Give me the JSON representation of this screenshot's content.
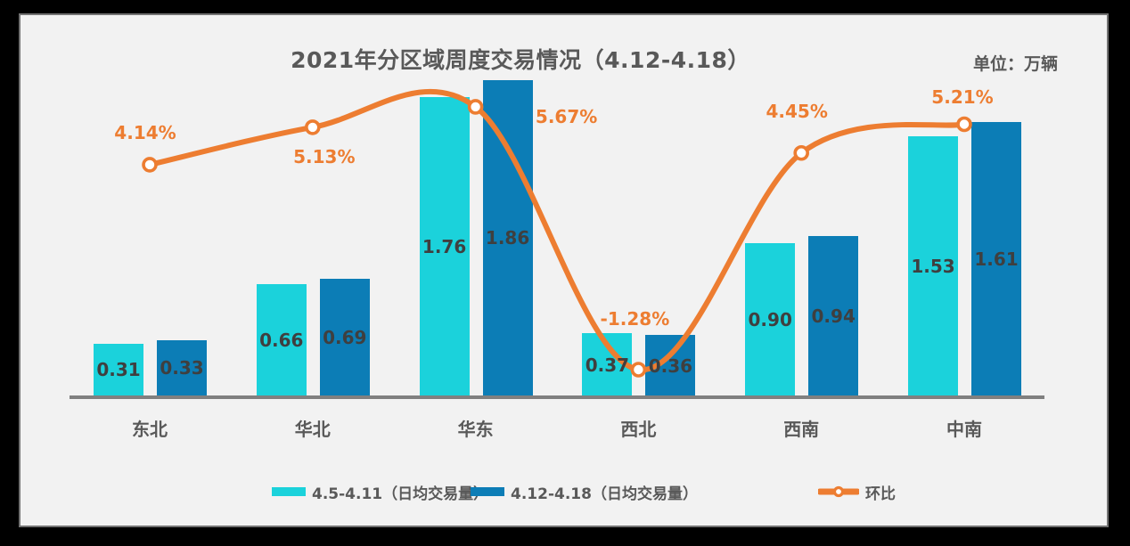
{
  "title": "2021年分区域周度交易情况（4.12-4.18）",
  "unit_label": "单位：万辆",
  "legend": {
    "items": [
      {
        "label": "4.5-4.11（日均交易量）",
        "color": "#1BD2DB",
        "type": "bar"
      },
      {
        "label": "4.12-4.18（日均交易量）",
        "color": "#0C7DB6",
        "type": "bar"
      },
      {
        "label": "环比",
        "color": "#ED7D31",
        "type": "line"
      }
    ]
  },
  "colors": {
    "series1": "#1BD2DB",
    "series2": "#0C7DB6",
    "line": "#ED7D31",
    "text_gray": "#595959",
    "value_text": "#3f3f3f",
    "axis": "#808080",
    "panel_bg": "#f2f2f2"
  },
  "chart_data": {
    "type": "bar+line",
    "title": "2021年分区域周度交易情况（4.12-4.18）",
    "unit": "万辆",
    "categories": [
      "东北",
      "华北",
      "华东",
      "西北",
      "西南",
      "中南"
    ],
    "series": [
      {
        "name": "4.5-4.11（日均交易量）",
        "type": "bar",
        "color": "#1BD2DB",
        "values": [
          0.31,
          0.66,
          1.76,
          0.37,
          0.9,
          1.53
        ]
      },
      {
        "name": "4.12-4.18（日均交易量）",
        "type": "bar",
        "color": "#0C7DB6",
        "values": [
          0.33,
          0.69,
          1.86,
          0.36,
          0.94,
          1.61
        ]
      },
      {
        "name": "环比",
        "type": "line",
        "color": "#ED7D31",
        "values_pct": [
          4.14,
          5.13,
          5.67,
          -1.28,
          4.45,
          5.21
        ],
        "labels": [
          "4.14%",
          "5.13%",
          "5.67%",
          "-1.28%",
          "4.45%",
          "5.21%"
        ]
      }
    ],
    "bar_value_format": "0.00",
    "y_axis_visible": false,
    "legend_position": "bottom"
  }
}
